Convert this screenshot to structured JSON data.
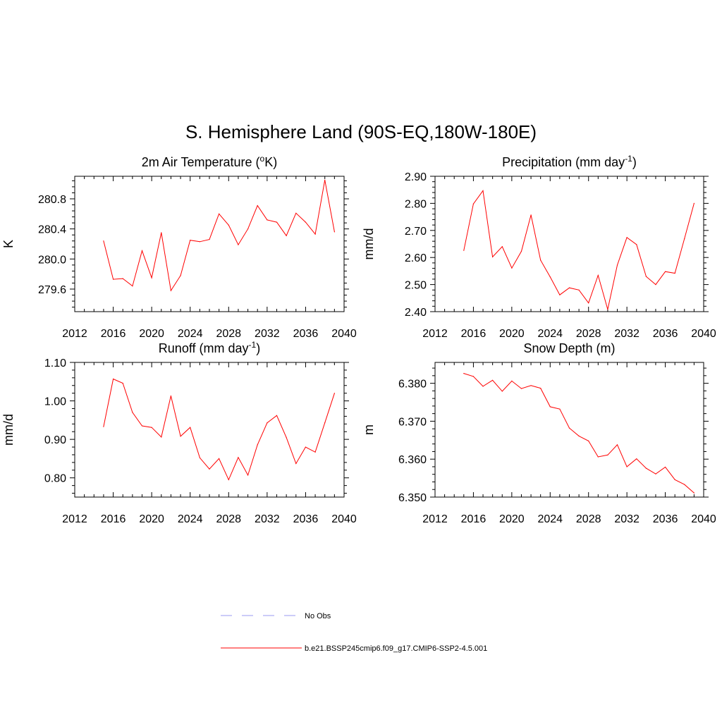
{
  "figure": {
    "title": "S. Hemisphere Land (90S-EQ,180W-180E)"
  },
  "legend": {
    "items": [
      {
        "label": "No Obs",
        "color": "#9a9af0",
        "style": "dashed"
      },
      {
        "label": "b.e21.BSSP245cmip6.f09_g17.CMIP6-SSP2-4.5.001",
        "color": "#ff0000",
        "style": "solid"
      }
    ]
  },
  "chart_data": [
    {
      "type": "line",
      "title": "2m Air Temperature (",
      "title_super": "o",
      "title_after": "K)",
      "ylabel": "K",
      "xlim": [
        2012,
        2040
      ],
      "ylim": [
        279.3,
        281.1
      ],
      "xticks": [
        2012,
        2016,
        2020,
        2024,
        2028,
        2032,
        2036,
        2040
      ],
      "yticks": [
        279.6,
        280.0,
        280.4,
        280.8
      ],
      "ytick_labels": [
        "279.6",
        "280.0",
        "280.4",
        "280.8"
      ],
      "series": [
        {
          "color": "#ff0000",
          "x": [
            2015,
            2016,
            2017,
            2018,
            2019,
            2020,
            2021,
            2022,
            2023,
            2024,
            2025,
            2026,
            2027,
            2028,
            2029,
            2030,
            2031,
            2032,
            2033,
            2034,
            2035,
            2036,
            2037,
            2038,
            2039
          ],
          "values": [
            280.24,
            279.73,
            279.74,
            279.64,
            280.11,
            279.75,
            280.35,
            279.58,
            279.78,
            280.25,
            280.23,
            280.26,
            280.6,
            280.45,
            280.19,
            280.4,
            280.71,
            280.52,
            280.49,
            280.31,
            280.61,
            280.49,
            280.33,
            281.05,
            280.36
          ]
        }
      ]
    },
    {
      "type": "line",
      "title": "Precipitation (mm day",
      "title_super": "-1",
      "title_after": ")",
      "ylabel": "mm/d",
      "xlim": [
        2012,
        2040
      ],
      "ylim": [
        2.4,
        2.9
      ],
      "xticks": [
        2012,
        2016,
        2020,
        2024,
        2028,
        2032,
        2036,
        2040
      ],
      "yticks": [
        2.4,
        2.5,
        2.6,
        2.7,
        2.8,
        2.9
      ],
      "ytick_labels": [
        "2.40",
        "2.50",
        "2.60",
        "2.70",
        "2.80",
        "2.90"
      ],
      "series": [
        {
          "color": "#ff0000",
          "x": [
            2015,
            2016,
            2017,
            2018,
            2019,
            2020,
            2021,
            2022,
            2023,
            2024,
            2025,
            2026,
            2027,
            2028,
            2029,
            2030,
            2031,
            2032,
            2033,
            2034,
            2035,
            2036,
            2037,
            2038,
            2039
          ],
          "values": [
            2.626,
            2.798,
            2.847,
            2.602,
            2.64,
            2.561,
            2.623,
            2.757,
            2.59,
            2.528,
            2.462,
            2.488,
            2.48,
            2.432,
            2.534,
            2.408,
            2.572,
            2.674,
            2.648,
            2.53,
            2.5,
            2.548,
            2.542,
            2.67,
            2.8
          ]
        }
      ]
    },
    {
      "type": "line",
      "title": "Runoff (mm day",
      "title_super": "-1",
      "title_after": ")",
      "ylabel": "mm/d",
      "xlim": [
        2012,
        2040
      ],
      "ylim": [
        0.75,
        1.1
      ],
      "xticks": [
        2012,
        2016,
        2020,
        2024,
        2028,
        2032,
        2036,
        2040
      ],
      "yticks": [
        0.8,
        0.9,
        1.0,
        1.1
      ],
      "ytick_labels": [
        "0.80",
        "0.90",
        "1.00",
        "1.10"
      ],
      "series": [
        {
          "color": "#ff0000",
          "x": [
            2015,
            2016,
            2017,
            2018,
            2019,
            2020,
            2021,
            2022,
            2023,
            2024,
            2025,
            2026,
            2027,
            2028,
            2029,
            2030,
            2031,
            2032,
            2033,
            2034,
            2035,
            2036,
            2037,
            2038,
            2039
          ],
          "values": [
            0.933,
            1.057,
            1.046,
            0.97,
            0.935,
            0.931,
            0.906,
            1.013,
            0.908,
            0.931,
            0.852,
            0.823,
            0.85,
            0.795,
            0.853,
            0.807,
            0.886,
            0.943,
            0.962,
            0.905,
            0.837,
            0.88,
            0.867,
            0.943,
            1.02
          ]
        }
      ]
    },
    {
      "type": "line",
      "title": "Snow Depth (m)",
      "title_super": "",
      "title_after": "",
      "ylabel": "m",
      "xlim": [
        2012,
        2040
      ],
      "ylim": [
        6.35,
        6.3855
      ],
      "xticks": [
        2012,
        2016,
        2020,
        2024,
        2028,
        2032,
        2036,
        2040
      ],
      "yticks": [
        6.35,
        6.36,
        6.37,
        6.38
      ],
      "ytick_labels": [
        "6.350",
        "6.360",
        "6.370",
        "6.380"
      ],
      "series": [
        {
          "color": "#ff0000",
          "x": [
            2015,
            2016,
            2017,
            2018,
            2019,
            2020,
            2021,
            2022,
            2023,
            2024,
            2025,
            2026,
            2027,
            2028,
            2029,
            2030,
            2031,
            2032,
            2033,
            2034,
            2035,
            2036,
            2037,
            2038,
            2039
          ],
          "values": [
            6.3826,
            6.3818,
            6.3792,
            6.3808,
            6.3779,
            6.3806,
            6.3786,
            6.3794,
            6.3787,
            6.3738,
            6.3732,
            6.3682,
            6.3661,
            6.3648,
            6.3606,
            6.3611,
            6.3638,
            6.358,
            6.3601,
            6.3576,
            6.3561,
            6.3579,
            6.3546,
            6.3533,
            6.3511
          ]
        }
      ]
    }
  ]
}
